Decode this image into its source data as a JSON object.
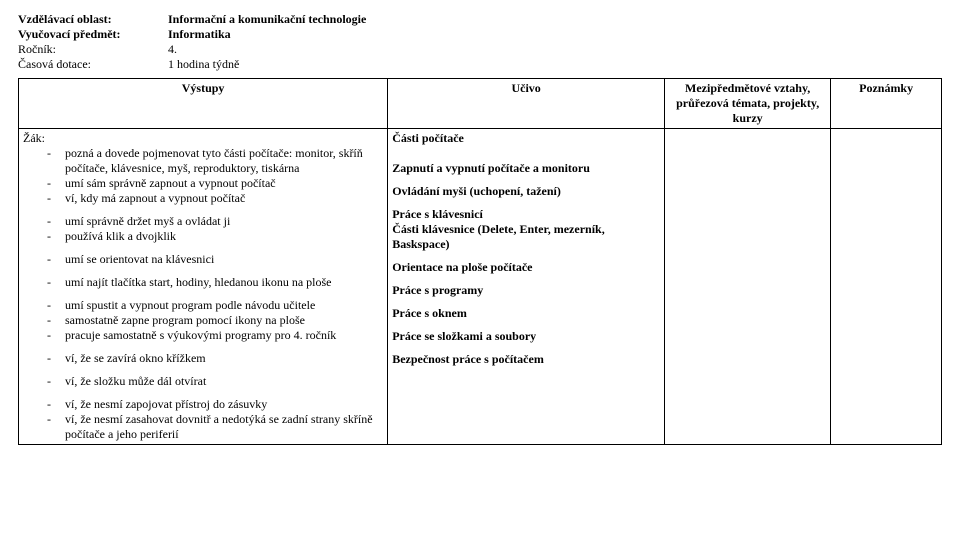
{
  "header": {
    "rows": [
      {
        "label": "Vzdělávací oblast:",
        "value": "Informační a komunikační technologie",
        "bold": true
      },
      {
        "label": "Vyučovací předmět:",
        "value": "Informatika",
        "bold": true
      },
      {
        "label": "Ročník:",
        "value": "4.",
        "bold": false
      },
      {
        "label": "Časová dotace:",
        "value": "1 hodina týdně",
        "bold": false
      }
    ]
  },
  "table": {
    "headers": [
      "Výstupy",
      "Učivo",
      "Mezipředmětové vztahy, průřezová témata, projekty, kurzy",
      "Poznámky"
    ],
    "zak_label": "Žák:",
    "rows": [
      {
        "vystupy": [
          "pozná a dovede pojmenovat tyto části počítače: monitor, skříň počítače, klávesnice, myš, reproduktory, tiskárna",
          "umí sám správně zapnout a vypnout počítač",
          "ví, kdy má zapnout a vypnout počítač"
        ],
        "ucivo": [
          "Části počítače",
          "",
          "Zapnutí a vypnutí počítače a monitoru"
        ]
      },
      {
        "vystupy": [
          "umí správně držet myš a ovládat ji",
          "používá klik a dvojklik"
        ],
        "ucivo": [
          "Ovládání myši (uchopení, tažení)"
        ]
      },
      {
        "vystupy": [
          "umí se orientovat na klávesnici"
        ],
        "ucivo": [
          "Práce s klávesnicí",
          "Části klávesnice (Delete, Enter, mezerník, Baskspace)"
        ]
      },
      {
        "vystupy": [
          "umí najít tlačítka start, hodiny, hledanou ikonu na ploše"
        ],
        "ucivo": [
          "Orientace na ploše počítače"
        ]
      },
      {
        "vystupy": [
          "umí spustit a vypnout program podle návodu učitele",
          "samostatně zapne program pomocí ikony na ploše",
          "pracuje samostatně s výukovými programy pro 4. ročník"
        ],
        "ucivo": [
          "Práce s programy"
        ]
      },
      {
        "vystupy": [
          "ví, že se zavírá okno křížkem"
        ],
        "ucivo": [
          "Práce s oknem"
        ]
      },
      {
        "vystupy": [
          "ví, že složku může dál otvírat"
        ],
        "ucivo": [
          "Práce se složkami a soubory"
        ]
      },
      {
        "vystupy": [
          "ví, že nesmí zapojovat přístroj do zásuvky",
          "ví, že nesmí zasahovat dovnitř a nedotýká se zadní strany skříně počítače a jeho periferií"
        ],
        "ucivo": [
          "Bezpečnost práce s počítačem"
        ]
      }
    ]
  }
}
